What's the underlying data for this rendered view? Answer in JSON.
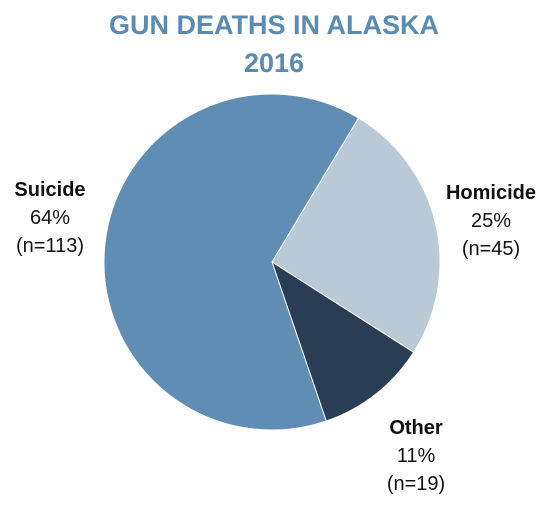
{
  "chart_data": {
    "type": "pie",
    "title": "GUN DEATHS IN ALASKA",
    "subtitle": "2016",
    "slices": [
      {
        "name": "Suicide",
        "percent_label": "64%",
        "count_label": "(n=113)",
        "value": 113,
        "color": "#5f8db4"
      },
      {
        "name": "Homicide",
        "percent_label": "25%",
        "count_label": "(n=45)",
        "value": 45,
        "color": "#b9cad6"
      },
      {
        "name": "Other",
        "percent_label": "11%",
        "count_label": "(n=19)",
        "value": 19,
        "color": "#293d54"
      }
    ]
  }
}
